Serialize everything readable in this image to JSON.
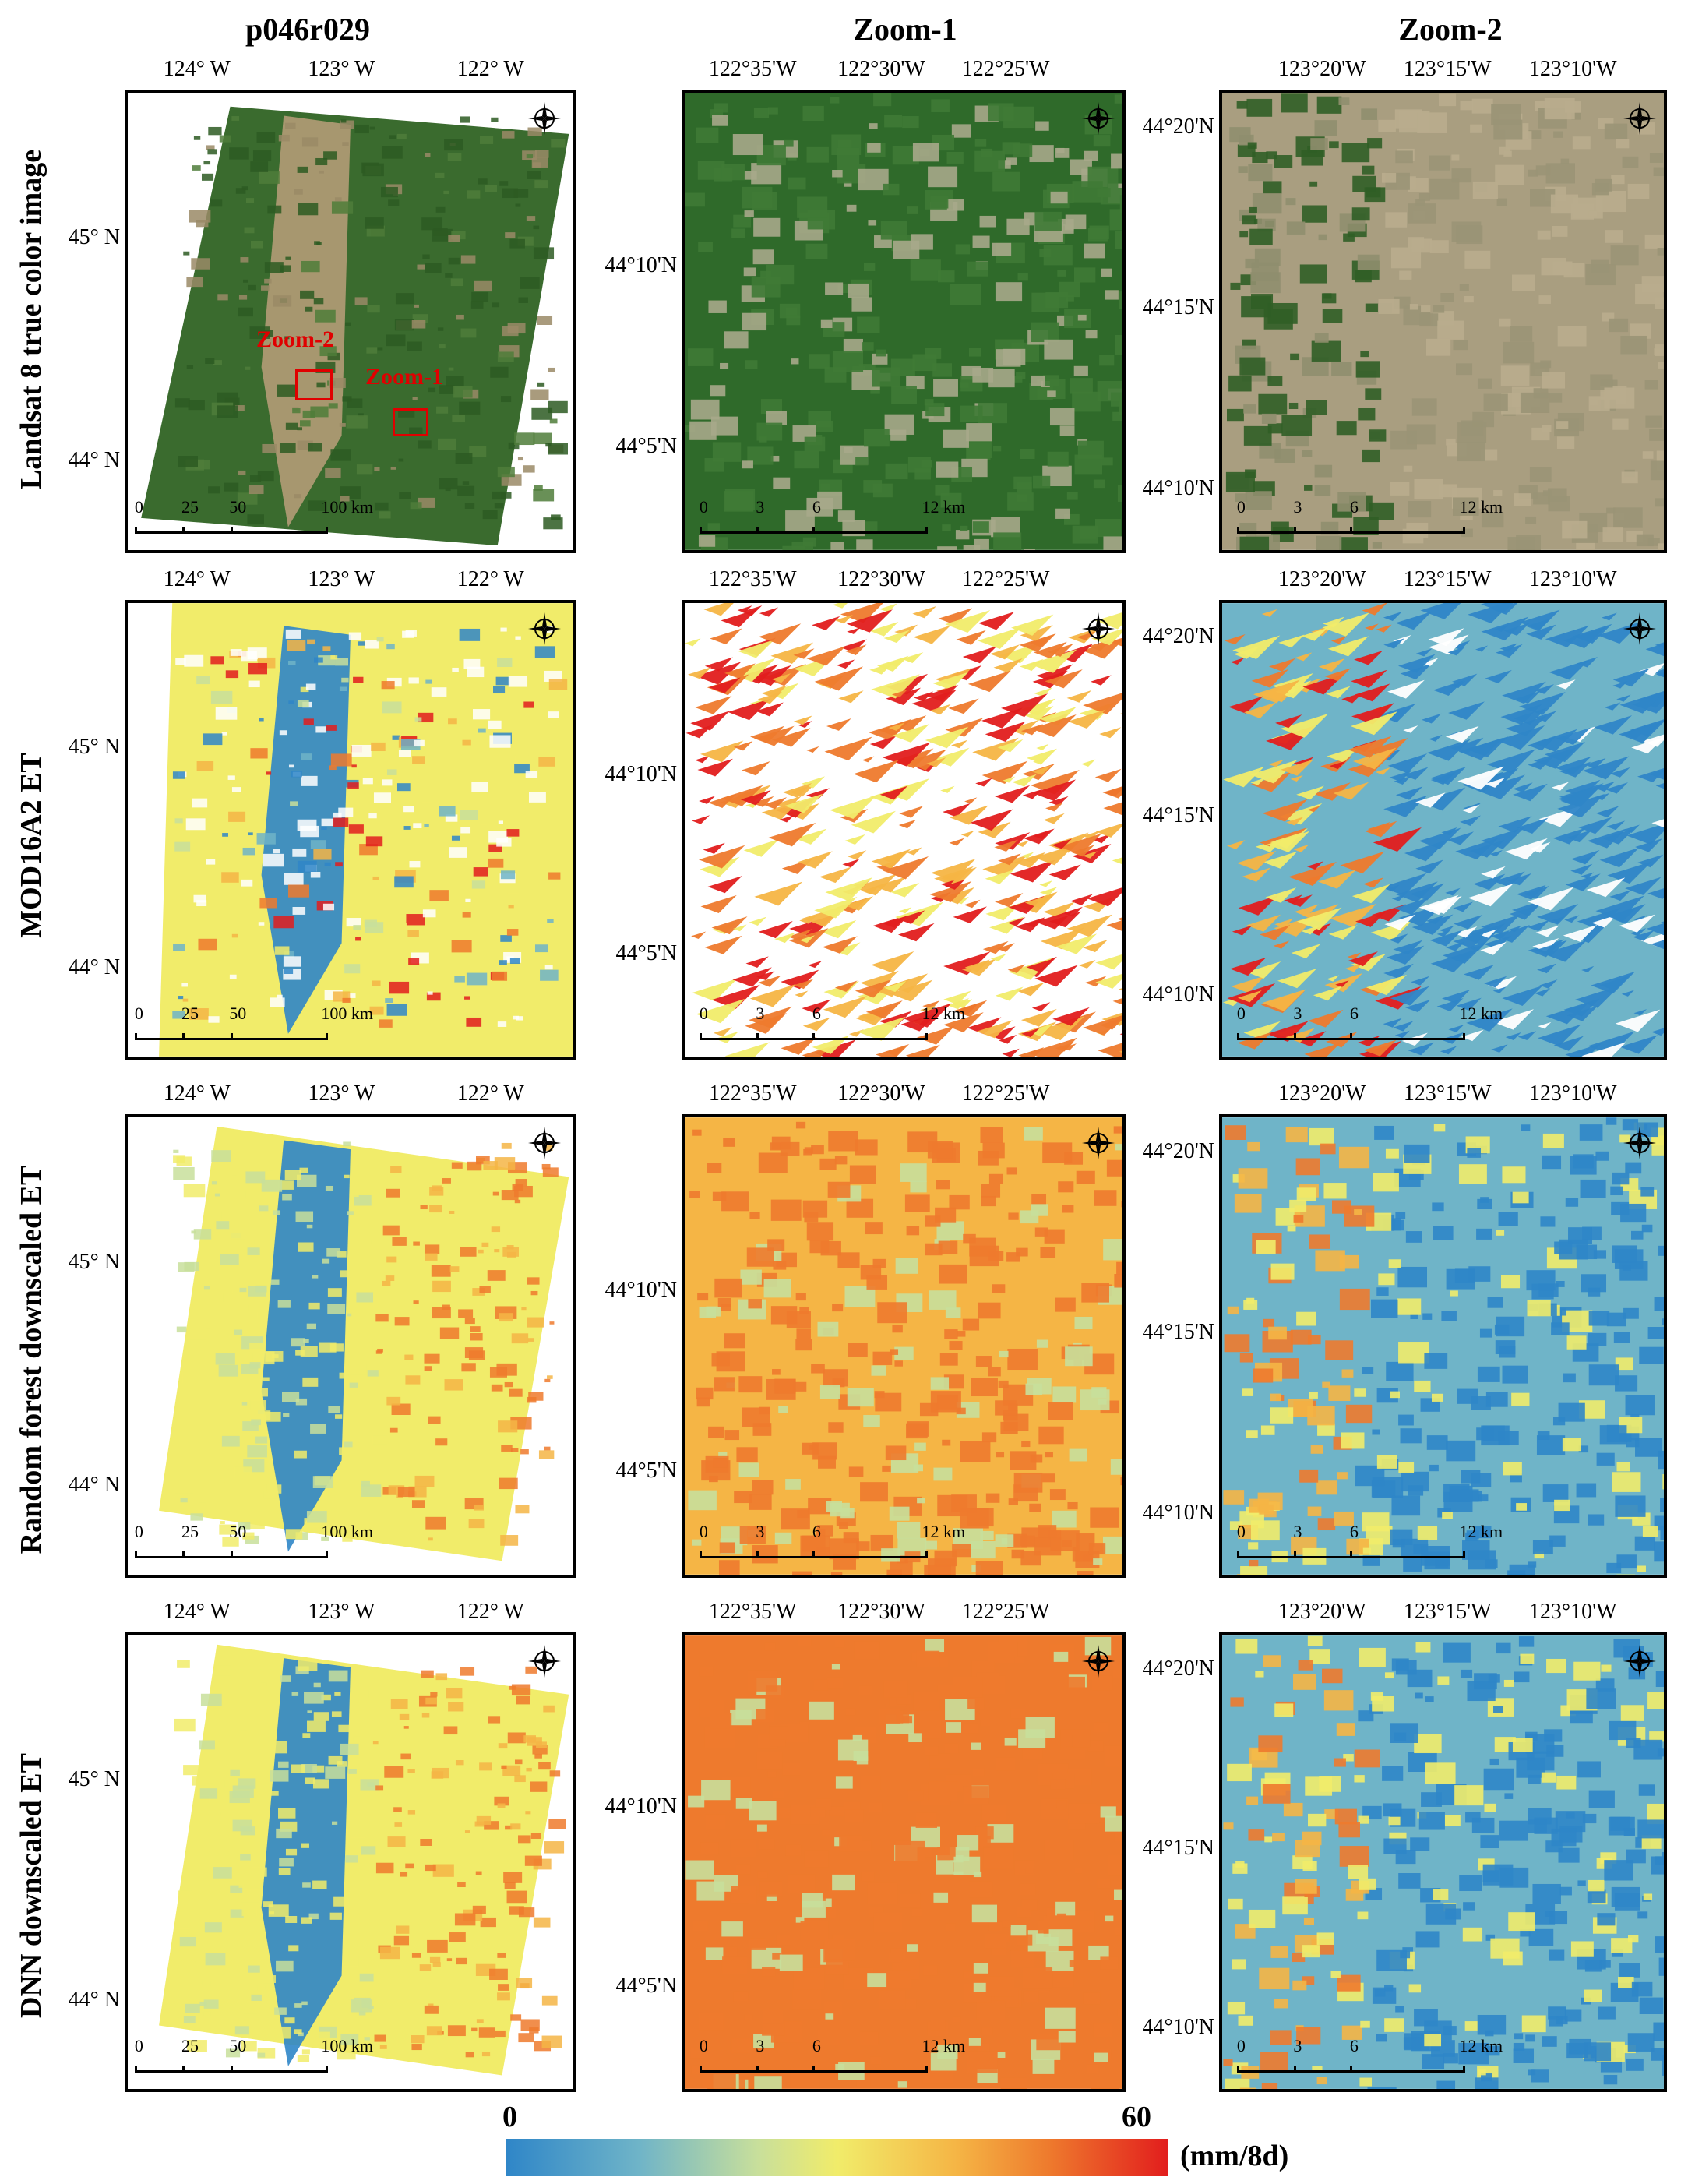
{
  "columns": [
    "p046r029",
    "Zoom-1",
    "Zoom-2"
  ],
  "rows": [
    "Landsat 8 true color image",
    "MOD16A2 ET",
    "Random forest downscaled ET",
    "DNN downscaled ET"
  ],
  "p046r029": {
    "xticks": [
      "124° W",
      "123° W",
      "122° W"
    ],
    "yticks": [
      "45° N",
      "44° N"
    ],
    "scale": [
      "0",
      "25",
      "50",
      "100 km"
    ],
    "zoom_boxes": [
      "Zoom-2",
      "Zoom-1"
    ]
  },
  "zoom1": {
    "xticks": [
      "122°35'W",
      "122°30'W",
      "122°25'W"
    ],
    "yticks": [
      "44°10'N",
      "44°5'N"
    ],
    "scale": [
      "0",
      "3",
      "6",
      "12 km"
    ]
  },
  "zoom2": {
    "xticks": [
      "123°20'W",
      "123°15'W",
      "123°10'W"
    ],
    "yticks": [
      "44°20'N",
      "44°15'N",
      "44°10'N"
    ],
    "scale": [
      "0",
      "3",
      "6",
      "12 km"
    ]
  },
  "colorbar": {
    "min": "0",
    "max": "60",
    "unit": "(mm/8d)",
    "colors": [
      "#2f86c8",
      "#6fb4c8",
      "#c8df9b",
      "#f1ec6a",
      "#f5b545",
      "#ee7a2d",
      "#e21d1d"
    ]
  }
}
